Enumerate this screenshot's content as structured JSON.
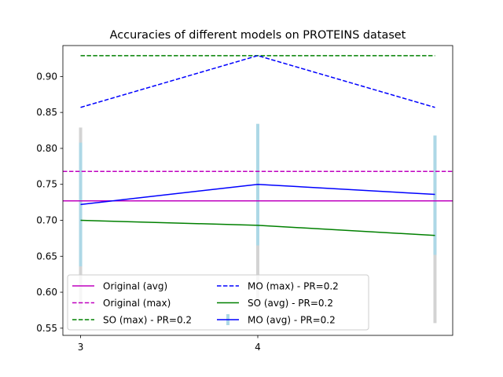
{
  "chart_data": {
    "type": "line",
    "title": "Accuracies of different models on PROTEINS dataset",
    "xlabel": "",
    "ylabel": "",
    "x": [
      3,
      4,
      5
    ],
    "x_tick_labels": [
      "3",
      "4"
    ],
    "x_range": [
      2.9,
      5.1
    ],
    "ylim": [
      0.54,
      0.943
    ],
    "y_ticks": [
      0.55,
      0.6,
      0.65,
      0.7,
      0.75,
      0.8,
      0.85,
      0.9
    ],
    "y_tick_labels": [
      "0.55",
      "0.60",
      "0.65",
      "0.70",
      "0.75",
      "0.80",
      "0.85",
      "0.90"
    ],
    "grid": false,
    "legend_position": "lower-left",
    "legend_columns": 2,
    "series": [
      {
        "name": "Original (avg)",
        "style": "solid",
        "color": "#bf00bf",
        "kind": "hline",
        "value": 0.727
      },
      {
        "name": "Original (max)",
        "style": "dashed",
        "color": "#bf00bf",
        "kind": "hline",
        "value": 0.768
      },
      {
        "name": "SO (max) - PR=0.2",
        "style": "dashed",
        "color": "#008000",
        "kind": "line",
        "values": [
          0.929,
          0.929,
          0.929
        ]
      },
      {
        "name": "MO (max) - PR=0.2",
        "style": "dashed",
        "color": "#0000ff",
        "kind": "line",
        "values": [
          0.857,
          0.929,
          0.857
        ]
      },
      {
        "name": "SO (avg) - PR=0.2",
        "style": "solid",
        "color": "#008000",
        "kind": "line",
        "values": [
          0.7,
          0.693,
          0.679
        ]
      },
      {
        "name": "MO (avg) - PR=0.2",
        "style": "solid",
        "color": "#0000ff",
        "kind": "line",
        "errorbar": true,
        "values": [
          0.722,
          0.75,
          0.736
        ]
      }
    ],
    "error_bars": {
      "gray": {
        "color": "#d3d3d3",
        "ranges": [
          [
            0.575,
            0.829
          ],
          [
            0.575,
            0.834
          ],
          [
            0.557,
            0.818
          ]
        ]
      },
      "lightblue": {
        "color": "#add8e6",
        "ranges": [
          [
            0.636,
            0.808
          ],
          [
            0.665,
            0.834
          ],
          [
            0.652,
            0.818
          ]
        ]
      }
    }
  }
}
